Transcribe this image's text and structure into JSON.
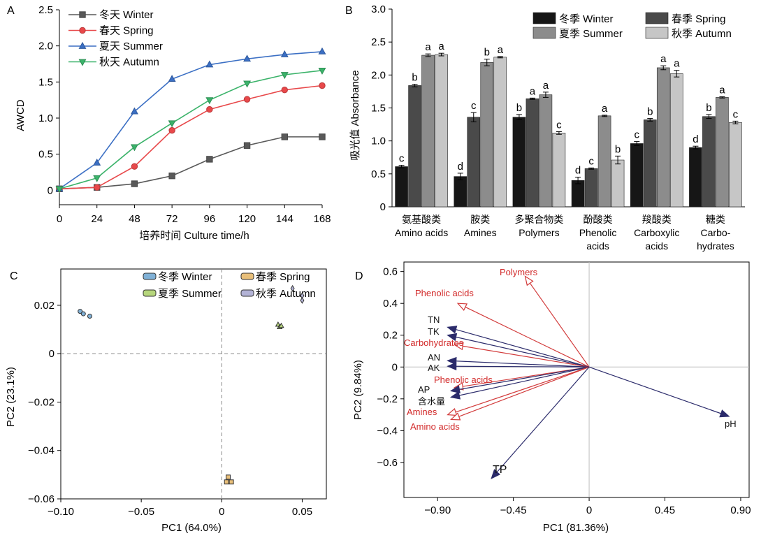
{
  "panels": [
    {
      "label": "A",
      "type": "line",
      "xlabel": "培养时间 Culture time/h",
      "ylabel": "AWCD",
      "x": [
        0,
        24,
        48,
        72,
        96,
        120,
        144,
        168
      ],
      "xticks": [
        "0",
        "24",
        "48",
        "72",
        "96",
        "120",
        "144",
        "168"
      ],
      "ylim": [
        -0.2,
        2.5
      ],
      "yticks": [
        "0",
        "0.5",
        "1.0",
        "1.5",
        "2.0",
        "2.5"
      ],
      "series": [
        {
          "name": "冬天  Winter",
          "color": "#595959",
          "marker": "square",
          "values": [
            0.02,
            0.04,
            0.09,
            0.2,
            0.43,
            0.62,
            0.74,
            0.74
          ]
        },
        {
          "name": "春天  Spring",
          "color": "#e8484a",
          "marker": "circle",
          "values": [
            0.02,
            0.04,
            0.33,
            0.83,
            1.12,
            1.26,
            1.39,
            1.45
          ]
        },
        {
          "name": "夏天 Summer",
          "color": "#3b6fc4",
          "marker": "triangle-up",
          "values": [
            0.02,
            0.38,
            1.09,
            1.54,
            1.74,
            1.82,
            1.88,
            1.92
          ]
        },
        {
          "name": "秋天 Autumn",
          "color": "#3bb36a",
          "marker": "triangle-down",
          "values": [
            0.02,
            0.17,
            0.6,
            0.93,
            1.25,
            1.48,
            1.6,
            1.66
          ]
        }
      ]
    },
    {
      "label": "B",
      "type": "bar",
      "ylabel": "吸光值 Absorbance",
      "ylim": [
        0,
        3.0
      ],
      "yticks": [
        "0",
        "0.5",
        "1.0",
        "1.5",
        "2.0",
        "2.5",
        "3.0"
      ],
      "categories": [
        [
          "氨基酸类",
          "Amino acids"
        ],
        [
          "胺类",
          "Amines"
        ],
        [
          "多聚合物类",
          "Polymers"
        ],
        [
          "酚酸类",
          "Phenolic",
          "acids"
        ],
        [
          "羧酸类",
          "Carboxylic",
          "acids"
        ],
        [
          "糖类",
          "Carbo-",
          "hydrates"
        ]
      ],
      "series": [
        {
          "name": "冬季 Winter",
          "color": "#161616",
          "values": [
            0.61,
            0.46,
            1.36,
            0.4,
            0.96,
            0.9
          ],
          "errors": [
            0.02,
            0.05,
            0.04,
            0.05,
            0.03,
            0.02
          ],
          "letters": [
            "c",
            "d",
            "b",
            "d",
            "c",
            "d"
          ]
        },
        {
          "name": "春季 Spring",
          "color": "#4a4a4a",
          "values": [
            1.84,
            1.36,
            1.64,
            0.58,
            1.32,
            1.37
          ],
          "errors": [
            0.02,
            0.07,
            0.01,
            0.01,
            0.02,
            0.03
          ],
          "letters": [
            "b",
            "c",
            "a",
            "c",
            "b",
            "b"
          ]
        },
        {
          "name": "夏季 Summer",
          "color": "#8c8c8c",
          "values": [
            2.3,
            2.19,
            1.7,
            1.38,
            2.11,
            1.66
          ],
          "errors": [
            0.02,
            0.05,
            0.04,
            0.01,
            0.03,
            0.01
          ],
          "letters": [
            "a",
            "b",
            "a",
            "a",
            "a",
            "a"
          ]
        },
        {
          "name": "秋季 Autumn",
          "color": "#c6c6c6",
          "values": [
            2.31,
            2.27,
            1.12,
            0.71,
            2.02,
            1.28
          ],
          "errors": [
            0.02,
            0.01,
            0.02,
            0.06,
            0.05,
            0.02
          ],
          "letters": [
            "a",
            "a",
            "c",
            "b",
            "a",
            "c"
          ]
        }
      ]
    },
    {
      "label": "C",
      "type": "scatter",
      "xlabel": "PC1 (64.0%)",
      "ylabel": "PC2 (23.1%)",
      "xlim": [
        -0.1,
        0.065
      ],
      "ylim": [
        -0.06,
        0.035
      ],
      "xticks": [
        "−0.10",
        "−0.05",
        "0",
        "0.05"
      ],
      "yticks": [
        "−0.06",
        "−0.04",
        "−0.02",
        "0",
        "0.02"
      ],
      "series": [
        {
          "name": "冬季 Winter",
          "color": "#7fb0d6",
          "marker": "circle",
          "points": [
            [
              -0.088,
              0.0175
            ],
            [
              -0.086,
              0.0165
            ],
            [
              -0.082,
              0.0155
            ]
          ]
        },
        {
          "name": "春季 Spring",
          "color": "#e8bf7a",
          "marker": "square",
          "points": [
            [
              0.003,
              -0.053
            ],
            [
              0.004,
              -0.051
            ],
            [
              0.006,
              -0.053
            ]
          ]
        },
        {
          "name": "夏季 Summer",
          "color": "#b6d67c",
          "marker": "triangle-up",
          "points": [
            [
              0.035,
              0.012
            ],
            [
              0.036,
              0.011
            ],
            [
              0.037,
              0.0115
            ]
          ]
        },
        {
          "name": "秋季 Autumn",
          "color": "#b3b3d6",
          "marker": "diamond",
          "points": [
            [
              0.044,
              0.027
            ],
            [
              0.05,
              0.024
            ],
            [
              0.05,
              0.022
            ]
          ]
        }
      ]
    },
    {
      "label": "D",
      "type": "scatter",
      "subtype": "biplot",
      "xlabel": "PC1 (81.36%)",
      "ylabel": "PC2 (9.84%)",
      "xlim": [
        -1.1,
        0.95
      ],
      "ylim": [
        -0.82,
        0.66
      ],
      "xticks": [
        "−0.90",
        "−0.45",
        "0",
        "0.45",
        "0.90"
      ],
      "yticks": [
        "−0.6",
        "−0.4",
        "−0.2",
        "0",
        "0.2",
        "0.4",
        "0.6"
      ],
      "vectors": [
        {
          "name": "Polymers",
          "color": "#d23b3b",
          "x": -0.38,
          "y": 0.57
        },
        {
          "name": "Phenolic acids",
          "color": "#d23b3b",
          "x": -0.78,
          "y": 0.4
        },
        {
          "name": "TN",
          "color": "#2b2b6b",
          "x": -0.84,
          "y": 0.25
        },
        {
          "name": "TK",
          "color": "#2b2b6b",
          "x": -0.84,
          "y": 0.2
        },
        {
          "name": "Carbohydrates",
          "color": "#d23b3b",
          "x": -0.8,
          "y": 0.14
        },
        {
          "name": "AN",
          "color": "#2b2b6b",
          "x": -0.84,
          "y": 0.04
        },
        {
          "name": "AK",
          "color": "#2b2b6b",
          "x": -0.84,
          "y": 0.005
        },
        {
          "name": "Phenolic acids",
          "color": "#d23b3b",
          "x": -0.8,
          "y": -0.13
        },
        {
          "name": "AP",
          "color": "#2b2b6b",
          "x": -0.82,
          "y": -0.15
        },
        {
          "name": "含水量",
          "color": "#2b2b6b",
          "x": -0.82,
          "y": -0.19
        },
        {
          "name": "Amines",
          "color": "#d23b3b",
          "x": -0.84,
          "y": -0.3
        },
        {
          "name": "Amino acids",
          "color": "#d23b3b",
          "x": -0.82,
          "y": -0.33
        },
        {
          "name": "pH",
          "color": "#2b2b6b",
          "x": 0.83,
          "y": -0.31
        },
        {
          "name": "TP",
          "color": "#2b2b6b",
          "x": -0.58,
          "y": -0.7
        }
      ]
    }
  ]
}
